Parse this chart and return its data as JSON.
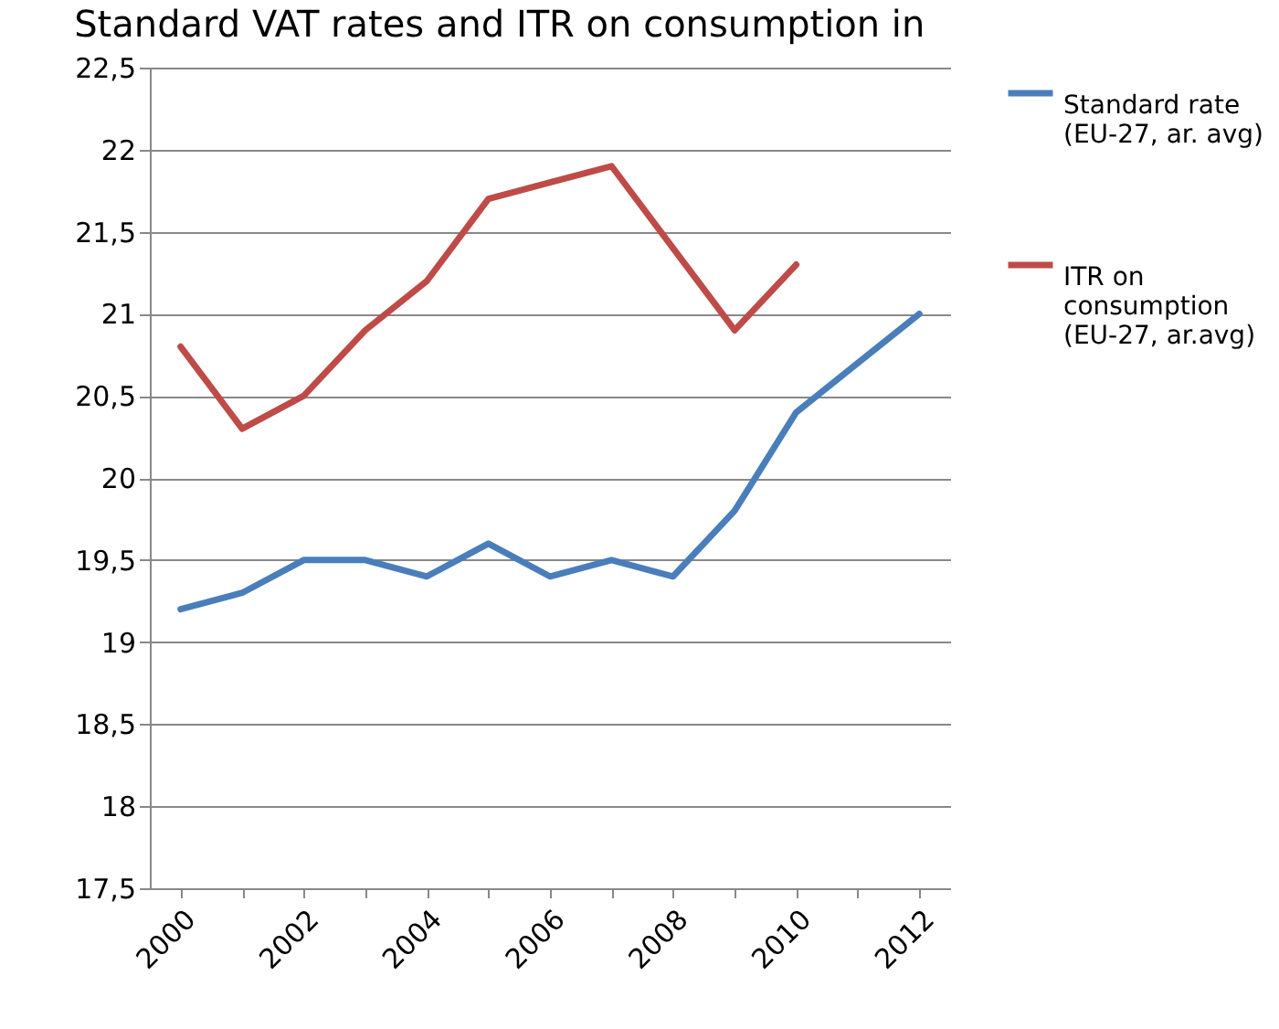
{
  "chart_data": {
    "type": "line",
    "title": "Standard VAT rates and ITR on consumption in",
    "categories": [
      "2000",
      null,
      "2002",
      null,
      "2004",
      null,
      "2006",
      null,
      "2008",
      null,
      "2010",
      null,
      "2012"
    ],
    "series": [
      {
        "name": "Standard rate (EU-27, ar. avg)",
        "color": "#4a7ebb",
        "values": [
          19.2,
          19.3,
          19.5,
          19.5,
          19.4,
          19.6,
          19.4,
          19.5,
          19.4,
          19.8,
          20.4,
          20.7,
          21.0
        ]
      },
      {
        "name": "ITR on consumption (EU-27, ar.avg)",
        "color": "#be4b48",
        "values": [
          20.8,
          20.3,
          20.5,
          20.9,
          21.2,
          21.7,
          21.8,
          21.9,
          21.4,
          20.9,
          21.3,
          null,
          null
        ]
      }
    ],
    "ylim": [
      17.5,
      22.5
    ],
    "yticks": [
      {
        "value": 17.5,
        "label": "17,5"
      },
      18,
      {
        "value": 18.5,
        "label": "18,5"
      },
      19,
      {
        "value": 19.5,
        "label": "19,5"
      },
      20,
      {
        "value": 20.5,
        "label": "20,5"
      },
      21,
      {
        "value": 21.5,
        "label": "21,5"
      },
      22,
      {
        "value": 22.5,
        "label": "22,5"
      }
    ],
    "grid": "y",
    "legend": "right",
    "marker": "none",
    "line_style": "solid"
  }
}
